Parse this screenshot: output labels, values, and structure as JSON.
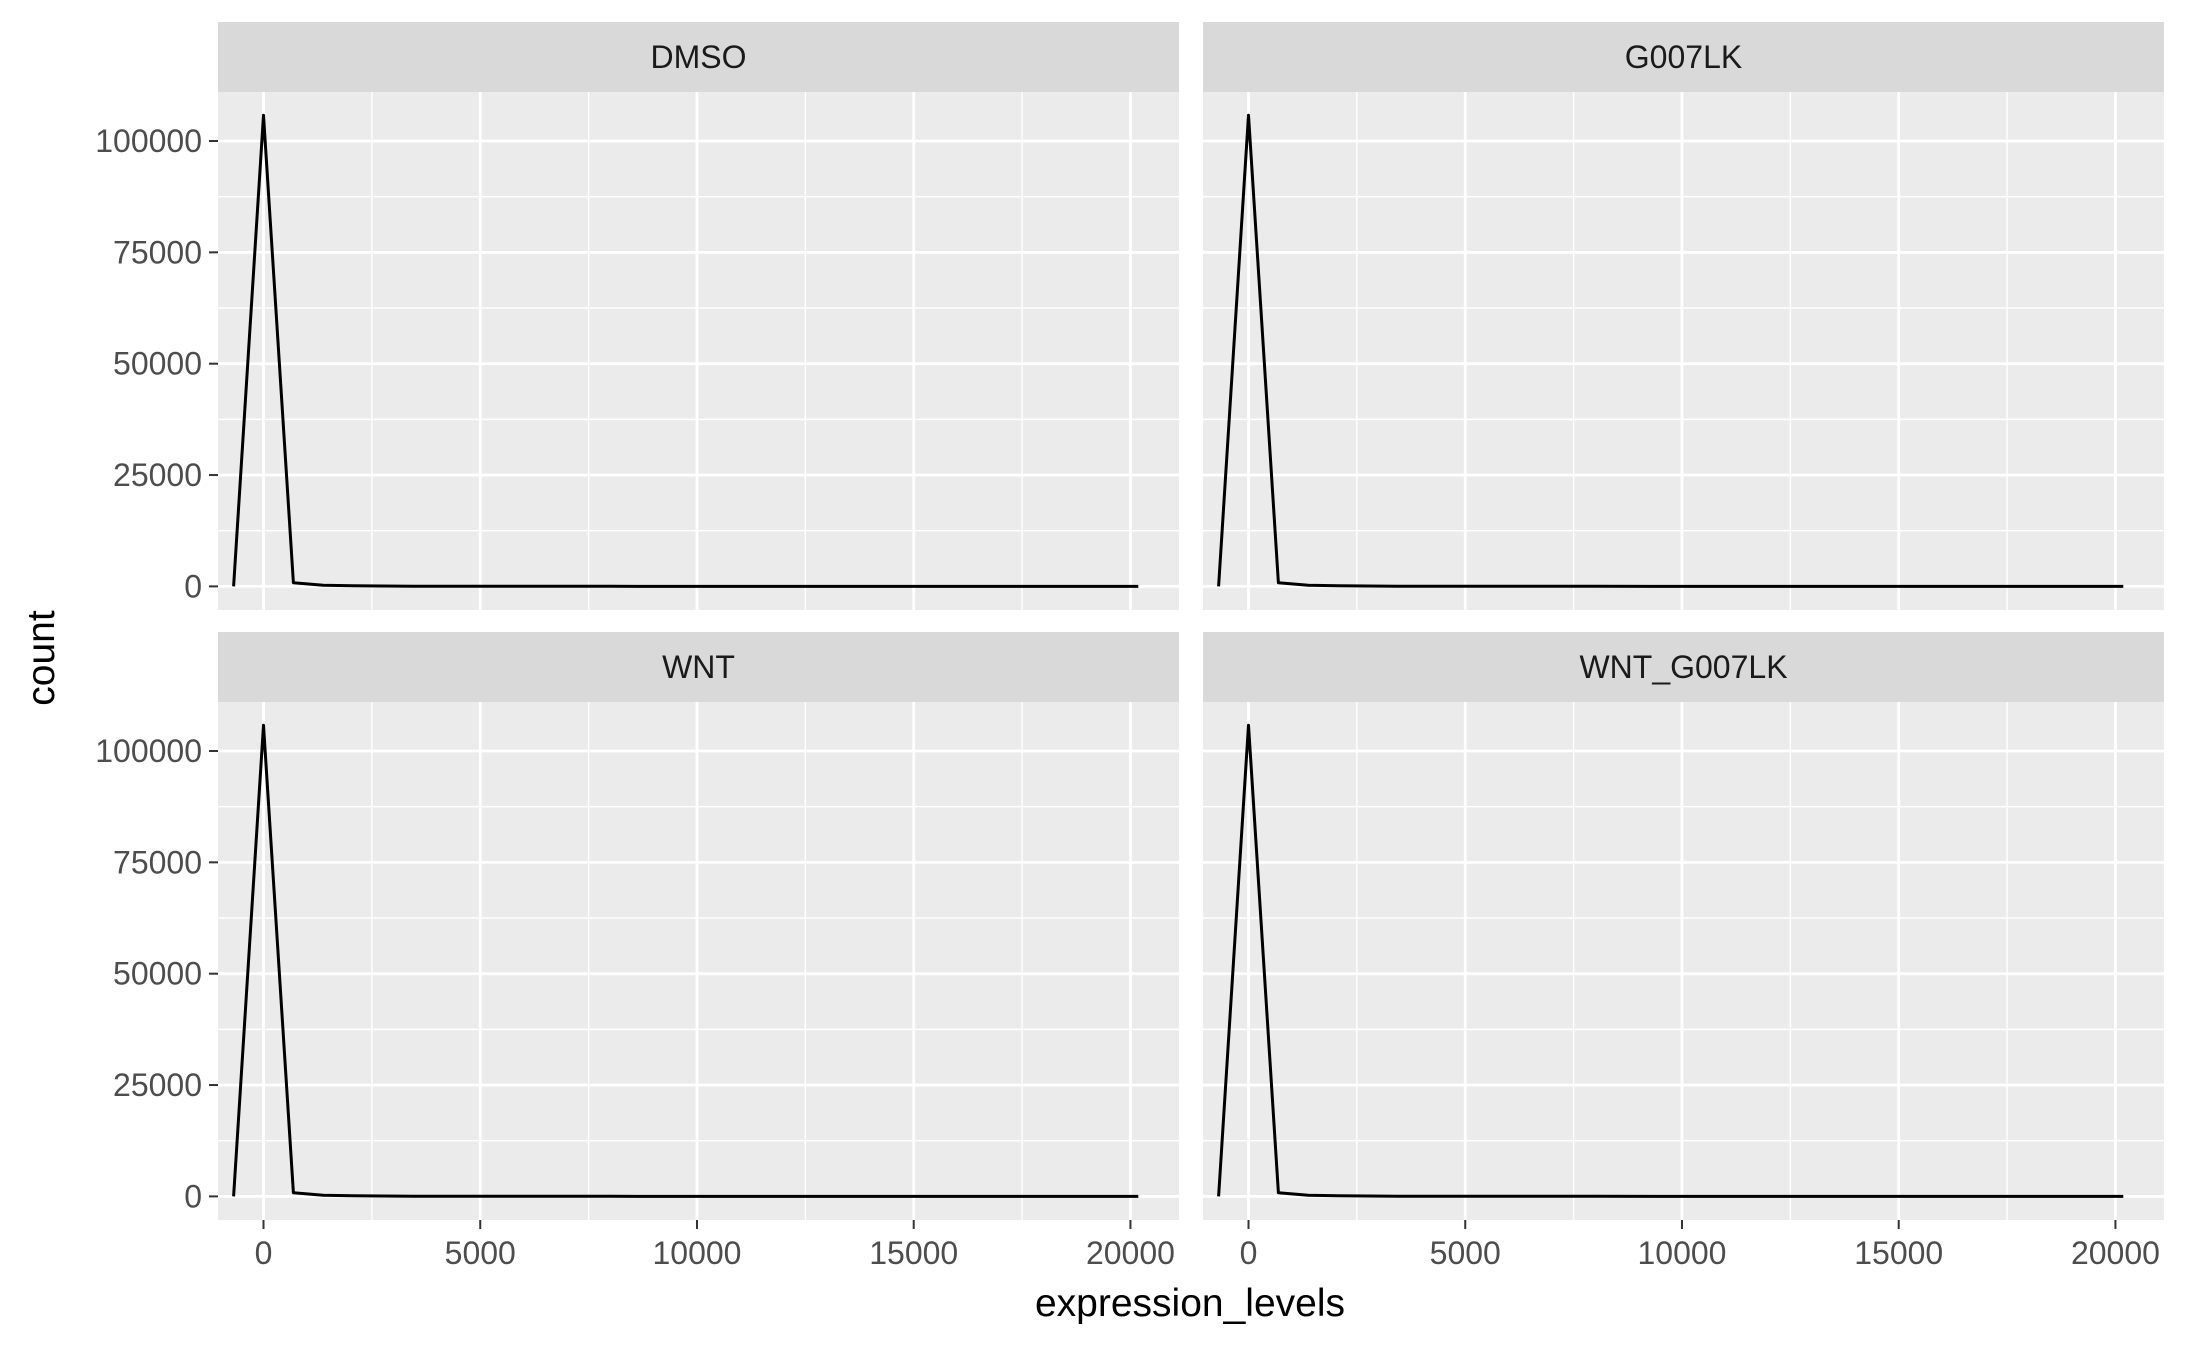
{
  "chart_data": {
    "type": "line",
    "facet_layout": "2x2",
    "xlabel": "expression_levels",
    "ylabel": "count",
    "xlim": [
      -1050,
      21120
    ],
    "ylim": [
      -5300,
      111000
    ],
    "x_ticks": [
      0,
      5000,
      10000,
      15000,
      20000
    ],
    "x_tick_labels": [
      "0",
      "5000",
      "10000",
      "15000",
      "20000"
    ],
    "y_ticks": [
      0,
      25000,
      50000,
      75000,
      100000
    ],
    "y_tick_labels": [
      "0",
      "25000",
      "50000",
      "75000",
      "100000"
    ],
    "grid": true,
    "colors": {
      "panel_bg": "#ebebeb",
      "strip_bg": "#d9d9d9",
      "grid": "#ffffff",
      "line": "#000000"
    },
    "panels": [
      {
        "title": "DMSO",
        "x": [
          -690,
          0,
          690,
          1380,
          2070,
          2760,
          3450,
          4140,
          5000,
          6000,
          8000,
          10000,
          12000,
          14000,
          16000,
          18000,
          20180
        ],
        "y": [
          0,
          105800,
          800,
          250,
          130,
          80,
          50,
          35,
          25,
          15,
          10,
          8,
          6,
          5,
          4,
          3,
          2
        ]
      },
      {
        "title": "G007LK",
        "x": [
          -690,
          0,
          690,
          1380,
          2070,
          2760,
          3450,
          4140,
          5000,
          6000,
          8000,
          10000,
          12000,
          14000,
          16000,
          18000,
          20180
        ],
        "y": [
          0,
          105800,
          800,
          250,
          130,
          80,
          50,
          35,
          25,
          15,
          10,
          8,
          6,
          5,
          4,
          3,
          2
        ]
      },
      {
        "title": "WNT",
        "x": [
          -690,
          0,
          690,
          1380,
          2070,
          2760,
          3450,
          4140,
          5000,
          6000,
          8000,
          10000,
          12000,
          14000,
          16000,
          18000,
          20180
        ],
        "y": [
          0,
          105800,
          800,
          250,
          130,
          80,
          50,
          35,
          25,
          15,
          10,
          8,
          6,
          5,
          4,
          3,
          2
        ]
      },
      {
        "title": "WNT_G007LK",
        "x": [
          -690,
          0,
          690,
          1380,
          2070,
          2760,
          3450,
          4140,
          5000,
          6000,
          8000,
          10000,
          12000,
          14000,
          16000,
          18000,
          20180
        ],
        "y": [
          0,
          105800,
          800,
          250,
          130,
          80,
          50,
          35,
          25,
          15,
          10,
          8,
          6,
          5,
          4,
          3,
          2
        ]
      }
    ]
  }
}
